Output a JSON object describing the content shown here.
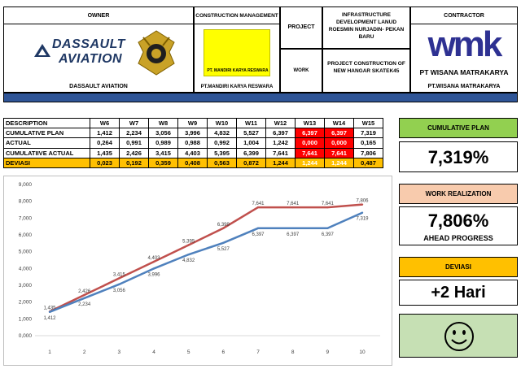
{
  "header": {
    "owner_label": "OWNER",
    "owner_logo": "DASSAULT AVIATION",
    "owner_logo_line1": "DASSAULT",
    "owner_logo_line2": "AVIATION",
    "owner_name": "DASSAULT AVIATION",
    "cm_label": "CONSTRUCTION MANAGEMENT",
    "cm_logo_text": "PT. MANDIRI KARYA RESWARA",
    "cm_name": "PT.MANDIRI KARYA RESWARA",
    "project_label": "PROJECT",
    "project_name": "INFRASTRUCTURE DEVELOPMENT LANUD ROESMIN NURJADIN- PEKAN BARU",
    "work_label": "WORK",
    "work_name": "PROJECT CONSTRUCTION OF NEW HANGAR SKATEK45",
    "contractor_label": "CONTRACTOR",
    "contractor_logo": "wmk",
    "contractor_logo_sub": "PT WISANA MATRAKARYA",
    "contractor_name": "PT.WISANA MATRAKARYA",
    "colors": {
      "bar": "#2f5597",
      "wmk_blue": "#2e3192",
      "mandiri_yellow": "#ffff00"
    }
  },
  "table": {
    "headers": [
      "DESCRIPTION",
      "W6",
      "W7",
      "W8",
      "W9",
      "W10",
      "W11",
      "W12",
      "W13",
      "W14",
      "W15"
    ],
    "rows": [
      {
        "label": "CUMULATIVE PLAN",
        "values": [
          "1,412",
          "2,234",
          "3,056",
          "3,996",
          "4,832",
          "5,527",
          "6,397",
          "6,397",
          "6,397",
          "7,319"
        ]
      },
      {
        "label": "ACTUAL",
        "values": [
          "0,264",
          "0,991",
          "0,989",
          "0,988",
          "0,992",
          "1,004",
          "1,242",
          "0,000",
          "0,000",
          "0,165"
        ]
      },
      {
        "label": "CUMULATIIVE ACTUAL",
        "values": [
          "1,435",
          "2,426",
          "3,415",
          "4,403",
          "5,395",
          "6,399",
          "7,641",
          "7,641",
          "7,641",
          "7,806"
        ]
      },
      {
        "label": "DEVIASI",
        "values": [
          "0,023",
          "0,192",
          "0,359",
          "0,408",
          "0,563",
          "0,872",
          "1,244",
          "1,244",
          "1,244",
          "0,487"
        ]
      }
    ],
    "highlight_columns": [
      "W13",
      "W14"
    ]
  },
  "cards": {
    "plan_label": "CUMULATIVE PLAN",
    "plan_value": "7,319%",
    "real_label": "WORK REALIZATION",
    "real_value": "7,806%",
    "real_status": "AHEAD PROGRESS",
    "dev_label": "DEVIASI",
    "dev_value": "+2 Hari",
    "face_icon": "smiley-face-icon",
    "colors": {
      "plan_header": "#92d050",
      "real_header": "#f8cbad",
      "dev_header": "#ffc000",
      "face_bg": "#c6e0b4"
    }
  },
  "chart_data": {
    "type": "line",
    "x": [
      1,
      2,
      3,
      4,
      5,
      6,
      7,
      8,
      9,
      10
    ],
    "ylim": [
      0,
      9000
    ],
    "yticks": [
      "0,000",
      "1,000",
      "2,000",
      "3,000",
      "4,000",
      "5,000",
      "6,000",
      "7,000",
      "8,000",
      "9,000"
    ],
    "xticks": [
      "1",
      "2",
      "3",
      "4",
      "5",
      "6",
      "7",
      "8",
      "9",
      "10"
    ],
    "grid": false,
    "series": [
      {
        "color": "#c0504d",
        "values": [
          1435,
          2426,
          3415,
          4403,
          5395,
          6399,
          7641,
          7641,
          7641,
          7806
        ],
        "labels": [
          "1,435",
          "2,426",
          "3,415",
          "4,403",
          "5,395",
          "6,399",
          "7,641",
          "7,641",
          "7,641",
          "7,806"
        ]
      },
      {
        "color": "#4f81bd",
        "values": [
          1412,
          2234,
          3056,
          3996,
          4832,
          5527,
          6397,
          6397,
          6397,
          7319
        ],
        "labels": [
          "1,412",
          "2,234",
          "3,056",
          "3,996",
          "4,832",
          "5,527",
          "6,397",
          "6,397",
          "6,397",
          "7,319"
        ]
      }
    ]
  }
}
